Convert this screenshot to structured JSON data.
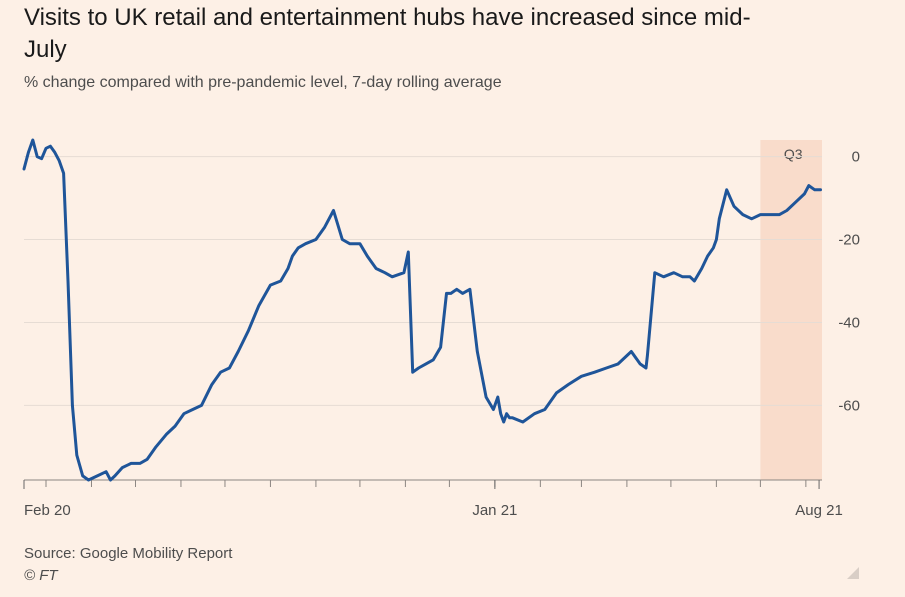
{
  "title": "Visits to UK retail and entertainment hubs have increased since mid-July",
  "subtitle": "% change compared with pre-pandemic level, 7-day rolling average",
  "source": "Source: Google Mobility Report",
  "credit": "© FT",
  "chart_data": {
    "type": "line",
    "xlabel": "",
    "ylabel": "",
    "x_tick_labels": [
      "Feb 20",
      "Jan 21",
      "Aug 21"
    ],
    "y_ticks": [
      0,
      -20,
      -40,
      -60
    ],
    "ylim": [
      -78,
      4
    ],
    "xlim": [
      "2020-02-15",
      "2021-08-12"
    ],
    "grid": true,
    "highlight": {
      "label": "Q3",
      "from": "2021-07-01",
      "to": "2021-08-12",
      "color": "#f9dccb"
    },
    "line_color": "#1f5599",
    "series": [
      {
        "x": [
          "2020-02-15",
          "2020-02-18",
          "2020-02-21",
          "2020-02-24",
          "2020-02-27",
          "2020-03-01",
          "2020-03-04",
          "2020-03-07",
          "2020-03-10",
          "2020-03-13",
          "2020-03-16",
          "2020-03-19",
          "2020-03-22",
          "2020-03-26",
          "2020-03-30",
          "2020-04-05",
          "2020-04-11",
          "2020-04-14",
          "2020-04-17",
          "2020-04-22",
          "2020-04-28",
          "2020-05-04",
          "2020-05-09",
          "2020-05-15",
          "2020-05-22",
          "2020-05-28",
          "2020-06-03",
          "2020-06-09",
          "2020-06-15",
          "2020-06-22",
          "2020-06-28",
          "2020-07-04",
          "2020-07-10",
          "2020-07-17",
          "2020-07-24",
          "2020-08-01",
          "2020-08-08",
          "2020-08-13",
          "2020-08-16",
          "2020-08-20",
          "2020-08-25",
          "2020-09-01",
          "2020-09-07",
          "2020-09-13",
          "2020-09-19",
          "2020-09-24",
          "2020-10-01",
          "2020-10-06",
          "2020-10-12",
          "2020-10-18",
          "2020-10-23",
          "2020-10-31",
          "2020-11-03",
          "2020-11-06",
          "2020-11-10",
          "2020-11-15",
          "2020-11-20",
          "2020-11-25",
          "2020-11-29",
          "2020-12-02",
          "2020-12-06",
          "2020-12-10",
          "2020-12-15",
          "2020-12-20",
          "2020-12-26",
          "2020-12-31",
          "2021-01-03",
          "2021-01-05",
          "2021-01-07",
          "2021-01-09",
          "2021-01-11",
          "2021-01-13",
          "2021-01-20",
          "2021-01-28",
          "2021-02-04",
          "2021-02-12",
          "2021-02-20",
          "2021-03-01",
          "2021-03-10",
          "2021-03-18",
          "2021-03-26",
          "2021-04-04",
          "2021-04-10",
          "2021-04-14",
          "2021-04-15",
          "2021-04-20",
          "2021-04-26",
          "2021-05-03",
          "2021-05-09",
          "2021-05-14",
          "2021-05-17",
          "2021-05-22",
          "2021-05-26",
          "2021-05-30",
          "2021-06-01",
          "2021-06-03",
          "2021-06-08",
          "2021-06-13",
          "2021-06-19",
          "2021-06-25",
          "2021-07-01",
          "2021-07-08",
          "2021-07-14",
          "2021-07-19",
          "2021-07-25",
          "2021-07-31",
          "2021-08-03",
          "2021-08-07",
          "2021-08-11"
        ],
        "y": [
          -3,
          1,
          4,
          0,
          -0.5,
          2,
          2.5,
          1,
          -1,
          -4,
          -30,
          -60,
          -72,
          -77,
          -78,
          -77,
          -76,
          -78,
          -77,
          -75,
          -74,
          -74,
          -73,
          -70,
          -67,
          -65,
          -62,
          -61,
          -60,
          -55,
          -52,
          -51,
          -47,
          -42,
          -36,
          -31,
          -30,
          -27,
          -24,
          -22,
          -21,
          -20,
          -17,
          -13,
          -20,
          -21,
          -21,
          -24,
          -27,
          -28,
          -29,
          -28,
          -23,
          -52,
          -51,
          -50,
          -49,
          -46,
          -33,
          -33,
          -32,
          -33,
          -32,
          -47,
          -58,
          -61,
          -58,
          -62,
          -64,
          -62,
          -63,
          -63,
          -64,
          -62,
          -61,
          -57,
          -55,
          -53,
          -52,
          -51,
          -50,
          -47,
          -50,
          -51,
          -48,
          -28,
          -29,
          -28,
          -29,
          -29,
          -30,
          -27,
          -24,
          -22,
          -20,
          -15,
          -8,
          -12,
          -14,
          -15,
          -14,
          -14,
          -14,
          -13,
          -11,
          -9,
          -7,
          -8,
          -8
        ]
      }
    ]
  }
}
